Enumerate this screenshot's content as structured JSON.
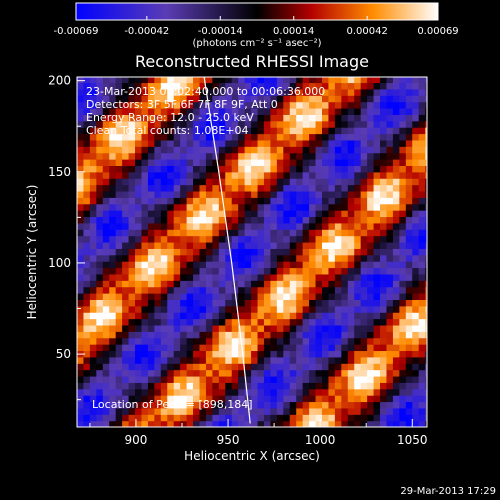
{
  "chart_data": {
    "type": "heatmap",
    "title": "Reconstructed RHESSI Image",
    "xlabel": "Heliocentric X (arcsec)",
    "ylabel": "Heliocentric Y (arcsec)",
    "xlim": [
      868,
      1058
    ],
    "ylim": [
      10,
      202
    ],
    "x_ticks": [
      900,
      950,
      1000,
      1050
    ],
    "y_ticks": [
      50,
      100,
      150,
      200
    ],
    "colorbar": {
      "label": "(photons cm⁻² s⁻¹ asec⁻²)",
      "min": -0.00069,
      "max": 0.00069,
      "ticks": [
        "-0.00069",
        "-0.00042",
        "-0.00014",
        "0.00014",
        "0.00042",
        "0.00069"
      ],
      "colormap": [
        "#0000ff",
        "#5a3cb4",
        "#000000",
        "#b40000",
        "#ff8c00",
        "#ffffff"
      ]
    },
    "annotations": [
      "23-Mar-2013 00:02:40.000 to 00:06:36.000",
      "Detectors: 3F 5F 6F 7F 8F 9F, Att 0",
      "Energy Range: 12.0 - 25.0 keV",
      "Clean     Total counts: 1.08E+04",
      "Location of Peak = [898,184]"
    ],
    "limb_curve": [
      [
        937,
        202
      ],
      [
        945,
        150
      ],
      [
        952,
        100
      ],
      [
        958,
        50
      ],
      [
        962,
        12
      ]
    ],
    "pattern": {
      "type": "diagonal stripes",
      "stripe_period_arcsec": 62,
      "stripe_angle_deg": 45,
      "amplitude": 0.00069
    },
    "peak_location": [
      898,
      184
    ]
  },
  "timestamp": "29-Mar-2013 17:29"
}
